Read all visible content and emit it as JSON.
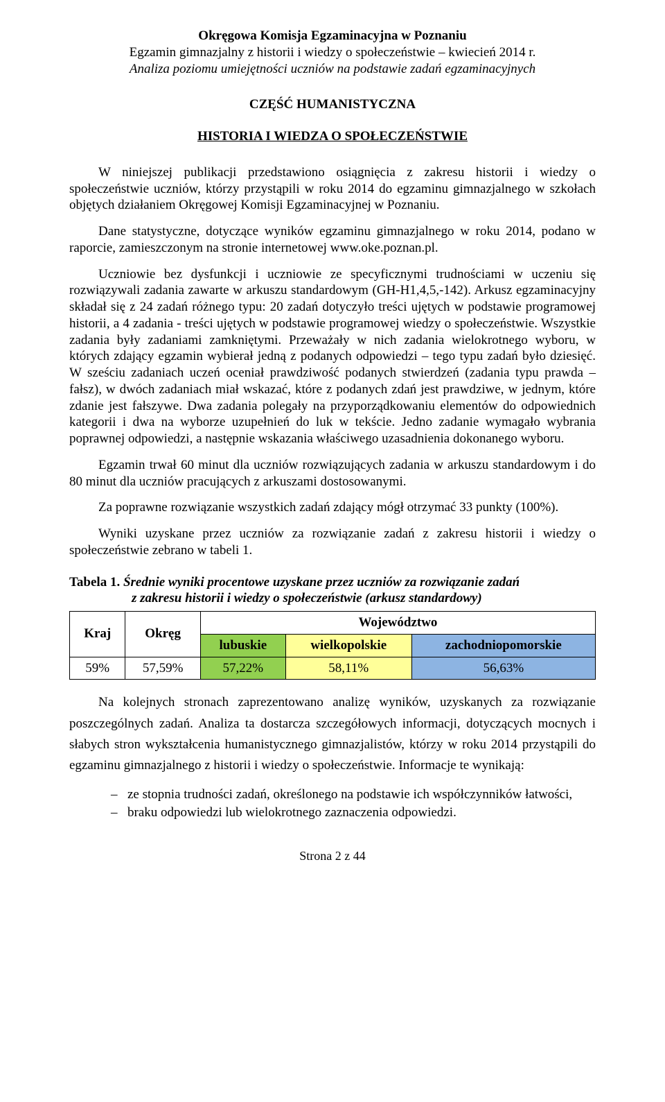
{
  "header": {
    "line1": "Okręgowa Komisja Egzaminacyjna w Poznaniu",
    "line2": "Egzamin gimnazjalny z historii i wiedzy o społeczeństwie – kwiecień 2014 r.",
    "line3": "Analiza poziomu umiejętności uczniów na podstawie zadań egzaminacyjnych"
  },
  "section_title": "CZĘŚĆ HUMANISTYCZNA",
  "doc_title": "HISTORIA I WIEDZA O SPOŁECZEŃSTWIE",
  "paragraphs": {
    "p1": "W niniejszej publikacji przedstawiono osiągnięcia z zakresu historii i wiedzy o społeczeństwie uczniów, którzy przystąpili w roku 2014 do egzaminu gimnazjalnego w szkołach objętych działaniem Okręgowej Komisji Egzaminacyjnej w Poznaniu.",
    "p2": "Dane statystyczne, dotyczące wyników egzaminu gimnazjalnego w roku 2014, podano w raporcie, zamieszczonym na stronie internetowej www.oke.poznan.pl.",
    "p3": "Uczniowie bez dysfunkcji i uczniowie ze specyficznymi trudnościami w uczeniu się rozwiązywali zadania zawarte w arkuszu standardowym (GH-H1,4,5,-142). Arkusz egzaminacyjny składał się z 24 zadań różnego typu: 20 zadań dotyczyło treści ujętych w podstawie programowej historii, a 4 zadania - treści ujętych w podstawie programowej wiedzy o społeczeństwie. Wszystkie zadania były zadaniami zamkniętymi. Przeważały w nich zadania wielokrotnego wyboru, w których zdający egzamin wybierał jedną z podanych odpowiedzi – tego typu zadań było dziesięć. W sześciu zadaniach uczeń oceniał prawdziwość podanych stwierdzeń (zadania typu prawda – fałsz), w dwóch zadaniach miał wskazać, które z podanych zdań jest prawdziwe, w jednym, które zdanie jest fałszywe. Dwa zadania polegały na przyporządkowaniu elementów do odpowiednich kategorii i dwa na wyborze uzupełnień do luk w tekście. Jedno zadanie wymagało wybrania poprawnej odpowiedzi, a następnie wskazania właściwego uzasadnienia dokonanego wyboru.",
    "p4": "Egzamin trwał 60 minut dla uczniów rozwiązujących zadania w arkuszu standardowym i do 80 minut dla uczniów pracujących z arkuszami dostosowanymi.",
    "p5": "Za poprawne rozwiązanie wszystkich zadań zdający mógł otrzymać 33 punkty (100%).",
    "p6": "Wyniki uzyskane przez uczniów za rozwiązanie zadań z zakresu historii i wiedzy o społeczeństwie zebrano w tabeli 1.",
    "p_after_table": "Na kolejnych stronach zaprezentowano analizę wyników, uzyskanych za rozwiązanie poszczególnych zadań. Analiza ta dostarcza szczegółowych informacji, dotyczących mocnych i słabych stron wykształcenia humanistycznego gimnazjalistów, którzy w roku 2014 przystąpili do egzaminu gimnazjalnego z historii i wiedzy o społeczeństwie. Informacje te wynikają:"
  },
  "table": {
    "caption_label": "Tabela 1.",
    "caption_text_line1": "Średnie wyniki procentowe uzyskane przez uczniów za rozwiązanie zadań",
    "caption_text_line2": "z zakresu historii i wiedzy o społeczeństwie (arkusz standardowy)",
    "col_kraj": "Kraj",
    "col_okreg": "Okręg",
    "col_wojewodztwo": "Województwo",
    "sub_lubuskie": "lubuskie",
    "sub_wielkopolskie": "wielkopolskie",
    "sub_zach": "zachodniopomorskie",
    "val_kraj": "59%",
    "val_okreg": "57,59%",
    "val_lub": "57,22%",
    "val_wlkp": "58,11%",
    "val_zach": "56,63%",
    "colors": {
      "green": "#92d050",
      "yellow": "#ffff99",
      "blue": "#8db4e2",
      "border": "#000000",
      "text": "#000000",
      "background": "#ffffff"
    },
    "font_size_pt": 14
  },
  "list": {
    "item1": "ze stopnia trudności zadań, określonego na podstawie ich współczynników łatwości,",
    "item2": "braku odpowiedzi lub wielokrotnego zaznaczenia odpowiedzi."
  },
  "footer": "Strona 2 z 44"
}
